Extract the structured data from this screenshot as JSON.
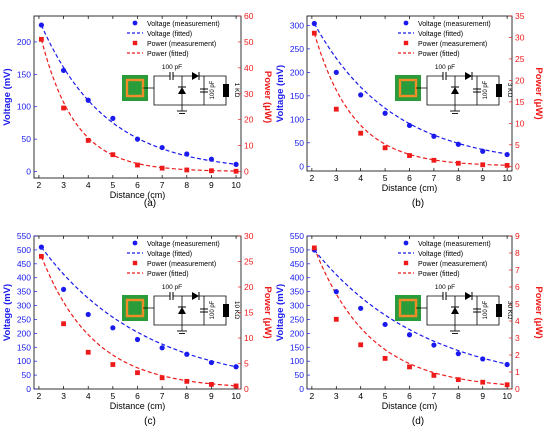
{
  "colors": {
    "voltage": "#1a1aee",
    "power": "#ee1a1a",
    "axis": "#000000",
    "coil": "#f28c28",
    "pcb": "#2a9d3a"
  },
  "legend_labels": [
    "Voltage (measurement)",
    "Voltage (fitted)",
    "Power (measurement)",
    "Power (fitted)"
  ],
  "circuit_text": {
    "cap": "100 pF"
  },
  "chart_data": [
    {
      "type": "scatter",
      "panel_label": "(a)",
      "xlabel": "Distance (cm)",
      "ylabel": "Voltage (mV)",
      "y2label": "Power (μW)",
      "x": [
        2.1,
        3,
        4,
        5,
        6,
        7,
        8,
        9,
        10
      ],
      "xlim": [
        1.8,
        10.2
      ],
      "xticks": [
        2,
        3,
        4,
        5,
        6,
        7,
        8,
        9,
        10
      ],
      "ylim": [
        -10,
        240
      ],
      "yticks": [
        0,
        50,
        100,
        150,
        200
      ],
      "y2lim": [
        -2.5,
        60
      ],
      "y2ticks": [
        0,
        10,
        20,
        30,
        40,
        50,
        60
      ],
      "load_label": "1 KΩ",
      "series": [
        {
          "name": "Voltage (measurement)",
          "axis": "left",
          "values": [
            226,
            156,
            110,
            82,
            50,
            37,
            27,
            19,
            11
          ]
        },
        {
          "name": "Power (measurement)",
          "axis": "right",
          "values": [
            51,
            24.5,
            12,
            6.5,
            2.5,
            1.3,
            0.6,
            0.3,
            0.1
          ]
        }
      ],
      "fits": [
        {
          "name": "Voltage (fitted)",
          "axis": "left",
          "amplitude": 226,
          "rate": 0.38
        },
        {
          "name": "Power (fitted)",
          "axis": "right",
          "amplitude": 51,
          "rate": 0.72
        }
      ],
      "legend": "top-right"
    },
    {
      "type": "scatter",
      "panel_label": "(b)",
      "xlabel": "Distance (cm)",
      "ylabel": "Voltage (mV)",
      "y2label": "Power (μW)",
      "x": [
        2.1,
        3,
        4,
        5,
        6,
        7,
        8,
        9,
        10
      ],
      "xlim": [
        1.8,
        10.2
      ],
      "xticks": [
        2,
        3,
        4,
        5,
        6,
        7,
        8,
        9,
        10
      ],
      "ylim": [
        -10,
        320
      ],
      "yticks": [
        0,
        50,
        100,
        150,
        200,
        250,
        300
      ],
      "y2lim": [
        -1.1,
        35
      ],
      "y2ticks": [
        0,
        5,
        10,
        15,
        20,
        25,
        30,
        35
      ],
      "load_label": "3 KΩ",
      "series": [
        {
          "name": "Voltage (measurement)",
          "axis": "left",
          "values": [
            304,
            200,
            152,
            113,
            87,
            64,
            47,
            32,
            25
          ]
        },
        {
          "name": "Power (measurement)",
          "axis": "right",
          "values": [
            31,
            13.3,
            7.7,
            4.3,
            2.5,
            1.4,
            0.7,
            0.35,
            0.2
          ]
        }
      ],
      "fits": [
        {
          "name": "Voltage (fitted)",
          "axis": "left",
          "amplitude": 304,
          "rate": 0.31
        },
        {
          "name": "Power (fitted)",
          "axis": "right",
          "amplitude": 31,
          "rate": 0.62
        }
      ],
      "legend": "top-right"
    },
    {
      "type": "scatter",
      "panel_label": "(c)",
      "xlabel": "Distance (cm)",
      "ylabel": "Voltage (mV)",
      "y2label": "Power (μW)",
      "x": [
        2.1,
        3,
        4,
        5,
        6,
        7,
        8,
        9,
        10
      ],
      "xlim": [
        1.8,
        10.2
      ],
      "xticks": [
        2,
        3,
        4,
        5,
        6,
        7,
        8,
        9,
        10
      ],
      "ylim": [
        0,
        550
      ],
      "yticks": [
        0,
        50,
        100,
        150,
        200,
        250,
        300,
        350,
        400,
        450,
        500,
        550
      ],
      "y2lim": [
        0,
        30
      ],
      "y2ticks": [
        0,
        5,
        10,
        15,
        20,
        25,
        30
      ],
      "load_label": "10 KΩ",
      "series": [
        {
          "name": "Voltage (measurement)",
          "axis": "left",
          "values": [
            510,
            358,
            268,
            220,
            178,
            148,
            125,
            95,
            80
          ]
        },
        {
          "name": "Power (measurement)",
          "axis": "right",
          "values": [
            26,
            12.8,
            7.2,
            4.8,
            3.2,
            2.2,
            1.5,
            0.9,
            0.6
          ]
        }
      ],
      "fits": [
        {
          "name": "Voltage (fitted)",
          "axis": "left",
          "amplitude": 510,
          "rate": 0.235
        },
        {
          "name": "Power (fitted)",
          "axis": "right",
          "amplitude": 26,
          "rate": 0.47
        }
      ],
      "legend": "top-right"
    },
    {
      "type": "scatter",
      "panel_label": "(d)",
      "xlabel": "Distance (cm)",
      "ylabel": "Voltage (mV)",
      "y2label": "Power (μW)",
      "x": [
        2.1,
        3,
        4,
        5,
        6,
        7,
        8,
        9,
        10
      ],
      "xlim": [
        1.8,
        10.2
      ],
      "xticks": [
        2,
        3,
        4,
        5,
        6,
        7,
        8,
        9,
        10
      ],
      "ylim": [
        0,
        550
      ],
      "yticks": [
        0,
        50,
        100,
        150,
        200,
        250,
        300,
        350,
        400,
        450,
        500,
        550
      ],
      "y2lim": [
        0,
        9
      ],
      "y2ticks": [
        0,
        1,
        2,
        3,
        4,
        5,
        6,
        7,
        8,
        9
      ],
      "load_label": "30 KΩ",
      "series": [
        {
          "name": "Voltage (measurement)",
          "axis": "left",
          "values": [
            500,
            350,
            290,
            232,
            195,
            158,
            127,
            108,
            88
          ]
        },
        {
          "name": "Power (measurement)",
          "axis": "right",
          "values": [
            8.3,
            4.1,
            2.6,
            1.8,
            1.3,
            0.8,
            0.55,
            0.4,
            0.25
          ]
        }
      ],
      "fits": [
        {
          "name": "Voltage (fitted)",
          "axis": "left",
          "amplitude": 500,
          "rate": 0.218
        },
        {
          "name": "Power (fitted)",
          "axis": "right",
          "amplitude": 8.3,
          "rate": 0.44
        }
      ],
      "legend": "top-right"
    }
  ]
}
